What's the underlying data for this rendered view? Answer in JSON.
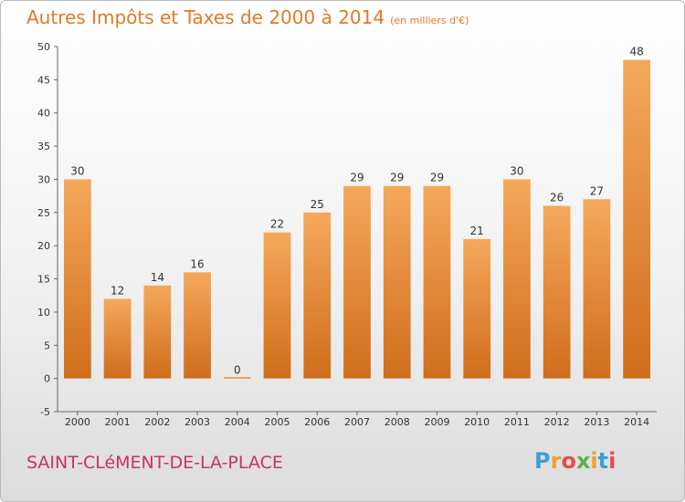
{
  "title": "Autres Impôts et Taxes de 2000 à 2014",
  "subtitle": "(en milliers d'€)",
  "place_name": "SAINT-CLéMENT-DE-LA-PLACE",
  "logo": {
    "letters": [
      "P",
      "r",
      "o",
      "x",
      "i",
      "t",
      "i"
    ],
    "colors": [
      "#3aa0d8",
      "#f0a030",
      "#e84c4c",
      "#5ab04a",
      "#f0a030",
      "#3aa0d8",
      "#e84c4c"
    ]
  },
  "colors": {
    "bar": "#e8883a",
    "bar_light": "#f5a85a",
    "title": "#e07a25",
    "place": "#c9316b"
  },
  "chart_data": {
    "type": "bar",
    "categories": [
      "2000",
      "2001",
      "2002",
      "2003",
      "2004",
      "2005",
      "2006",
      "2007",
      "2008",
      "2009",
      "2010",
      "2011",
      "2012",
      "2013",
      "2014"
    ],
    "values": [
      30,
      12,
      14,
      16,
      0,
      22,
      25,
      29,
      29,
      29,
      21,
      30,
      26,
      27,
      48
    ],
    "ylim": [
      -5,
      50
    ],
    "yticks": [
      -5,
      0,
      5,
      10,
      15,
      20,
      25,
      30,
      35,
      40,
      45,
      50
    ],
    "grid": false,
    "xlabel": "",
    "ylabel": ""
  }
}
